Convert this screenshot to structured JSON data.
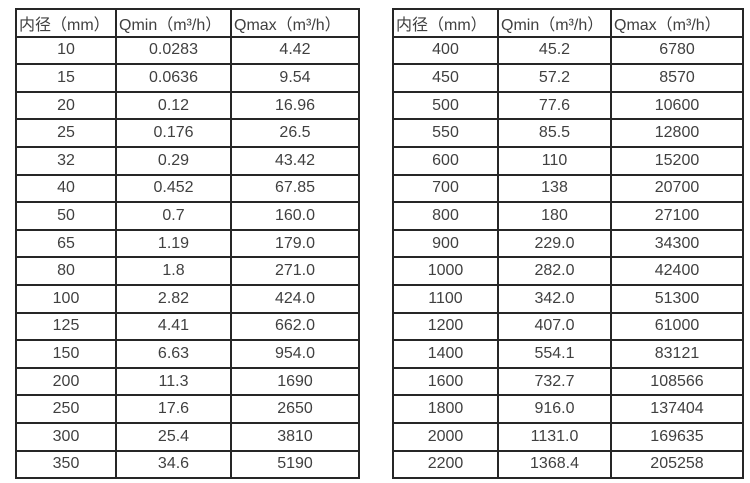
{
  "colors": {
    "border": "#262626",
    "text": "#404040",
    "background": "#ffffff"
  },
  "left_table": {
    "columns": [
      "内径（mm）",
      "Qmin（m³/h）",
      "Qmax（m³/h）"
    ],
    "rows": [
      [
        "10",
        "0.0283",
        "4.42"
      ],
      [
        "15",
        "0.0636",
        "9.54"
      ],
      [
        "20",
        "0.12",
        "16.96"
      ],
      [
        "25",
        "0.176",
        "26.5"
      ],
      [
        "32",
        "0.29",
        "43.42"
      ],
      [
        "40",
        "0.452",
        "67.85"
      ],
      [
        "50",
        "0.7",
        "160.0"
      ],
      [
        "65",
        "1.19",
        "179.0"
      ],
      [
        "80",
        "1.8",
        "271.0"
      ],
      [
        "100",
        "2.82",
        "424.0"
      ],
      [
        "125",
        "4.41",
        "662.0"
      ],
      [
        "150",
        "6.63",
        "954.0"
      ],
      [
        "200",
        "11.3",
        "1690"
      ],
      [
        "250",
        "17.6",
        "2650"
      ],
      [
        "300",
        "25.4",
        "3810"
      ],
      [
        "350",
        "34.6",
        "5190"
      ]
    ]
  },
  "right_table": {
    "columns": [
      "内径（mm）",
      "Qmin（m³/h）",
      "Qmax（m³/h）"
    ],
    "rows": [
      [
        "400",
        "45.2",
        "6780"
      ],
      [
        "450",
        "57.2",
        "8570"
      ],
      [
        "500",
        "77.6",
        "10600"
      ],
      [
        "550",
        "85.5",
        "12800"
      ],
      [
        "600",
        "110",
        "15200"
      ],
      [
        "700",
        "138",
        "20700"
      ],
      [
        "800",
        "180",
        "27100"
      ],
      [
        "900",
        "229.0",
        "34300"
      ],
      [
        "1000",
        "282.0",
        "42400"
      ],
      [
        "1100",
        "342.0",
        "51300"
      ],
      [
        "1200",
        "407.0",
        "61000"
      ],
      [
        "1400",
        "554.1",
        "83121"
      ],
      [
        "1600",
        "732.7",
        "108566"
      ],
      [
        "1800",
        "916.0",
        "137404"
      ],
      [
        "2000",
        "1131.0",
        "169635"
      ],
      [
        "2200",
        "1368.4",
        "205258"
      ]
    ]
  }
}
